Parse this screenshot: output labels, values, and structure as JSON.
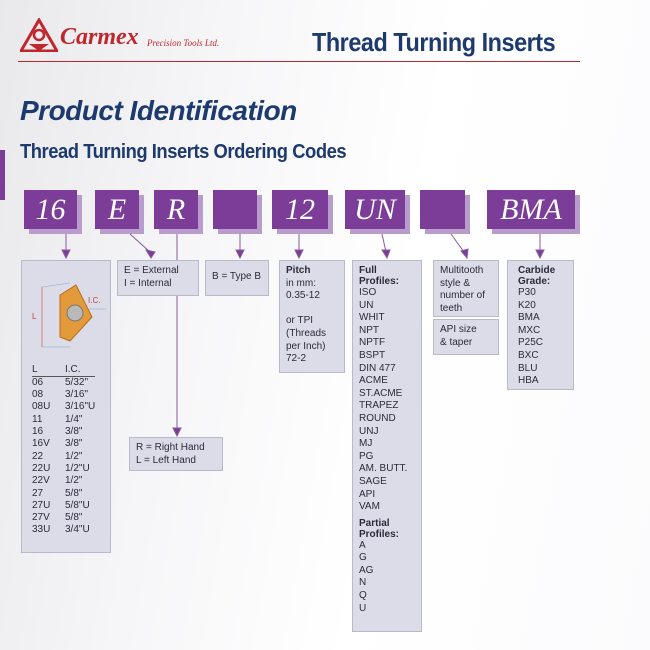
{
  "header": {
    "brand": "Carmex",
    "brand_sub": "Precision Tools Ltd.",
    "title": "Thread Turning Inserts"
  },
  "page_title": "Product Identification",
  "subtitle": "Thread Turning Inserts Ordering Codes",
  "colors": {
    "brand_red": "#c0272d",
    "navy": "#1d3a6e",
    "purple": "#7b3d97",
    "box_bg": "#dcdce9"
  },
  "codes": [
    "16",
    "E",
    "R",
    "",
    "12",
    "UN",
    "",
    "BMA"
  ],
  "size": {
    "ic_label": "I.C.",
    "l_label": "L",
    "headers": [
      "L",
      "I.C."
    ],
    "rows": [
      [
        "06",
        "5/32\""
      ],
      [
        "08",
        "3/16\""
      ],
      [
        "08U",
        "3/16\"U"
      ],
      [
        "11",
        "1/4\""
      ],
      [
        "16",
        "3/8\""
      ],
      [
        "16V",
        "3/8\""
      ],
      [
        "22",
        "1/2\""
      ],
      [
        "22U",
        "1/2\"U"
      ],
      [
        "22V",
        "1/2\""
      ],
      [
        "27",
        "5/8\""
      ],
      [
        "27U",
        "5/8\"U"
      ],
      [
        "27V",
        "5/8\""
      ],
      [
        "33U",
        "3/4\"U"
      ]
    ]
  },
  "type": {
    "line1": "E = External",
    "line2": "I = Internal"
  },
  "hand": {
    "line1": "R = Right Hand",
    "line2": "L = Left Hand"
  },
  "btype": {
    "text": "B = Type B"
  },
  "pitch": {
    "title": "Pitch",
    "lines": [
      "in mm:",
      "0.35-12",
      "",
      "or TPI",
      "(Threads",
      "per Inch)",
      "72-2"
    ]
  },
  "profiles": {
    "full_title": "Full Profiles:",
    "full": [
      "ISO",
      "UN",
      "WHIT",
      "NPT",
      "NPTF",
      "BSPT",
      "DIN 477",
      "ACME",
      "ST.ACME",
      "TRAPEZ",
      "ROUND",
      "UNJ",
      "MJ",
      "PG",
      "AM. BUTT.",
      "SAGE",
      "API",
      "VAM"
    ],
    "partial_title": "Partial Profiles:",
    "partial": [
      "A",
      "G",
      "AG",
      "N",
      "Q",
      "U"
    ]
  },
  "multitooth": {
    "text": "Multitooth style & number of teeth"
  },
  "api": {
    "text": "API size & taper"
  },
  "grade": {
    "title": "Carbide Grade:",
    "items": [
      "P30",
      "K20",
      "BMA",
      "MXC",
      "P25C",
      "BXC",
      "BLU",
      "HBA"
    ]
  }
}
